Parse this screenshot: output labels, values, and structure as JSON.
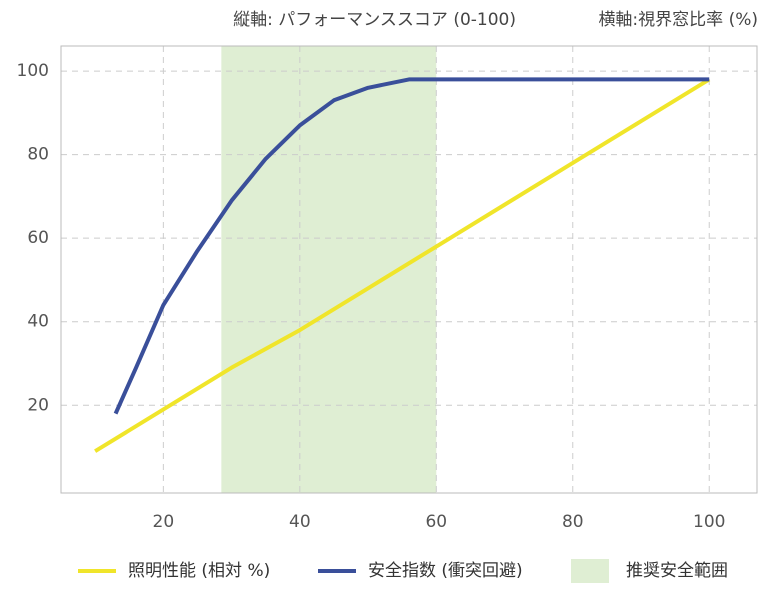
{
  "chart_data": {
    "type": "line",
    "y_axis_note": "縦軸: パフォーマンススコア (0-100)",
    "x_axis_note": "横軸:視界窓比率 (%)",
    "xlim": [
      5,
      107
    ],
    "ylim": [
      -1,
      106
    ],
    "xticks": [
      20,
      40,
      60,
      80,
      100
    ],
    "yticks": [
      20,
      40,
      60,
      80,
      100
    ],
    "grid": true,
    "shaded_region": {
      "name": "推奨安全範囲",
      "range": [
        28.5,
        60
      ],
      "color": "#dfeed3"
    },
    "series": [
      {
        "name": "照明性能 (相対 %)",
        "color": "#f0e52a",
        "x": [
          10,
          20,
          30,
          40,
          50,
          60,
          70,
          80,
          90,
          100
        ],
        "values": [
          9,
          19,
          29,
          38,
          48,
          58,
          68,
          78,
          88,
          98
        ]
      },
      {
        "name": "安全指数 (衝突回避)",
        "color": "#3a4f9a",
        "x": [
          13,
          16,
          20,
          25,
          30,
          35,
          40,
          45,
          50,
          56,
          100
        ],
        "values": [
          18,
          29,
          44,
          57,
          69,
          79,
          87,
          93,
          96,
          98,
          98
        ]
      }
    ]
  }
}
